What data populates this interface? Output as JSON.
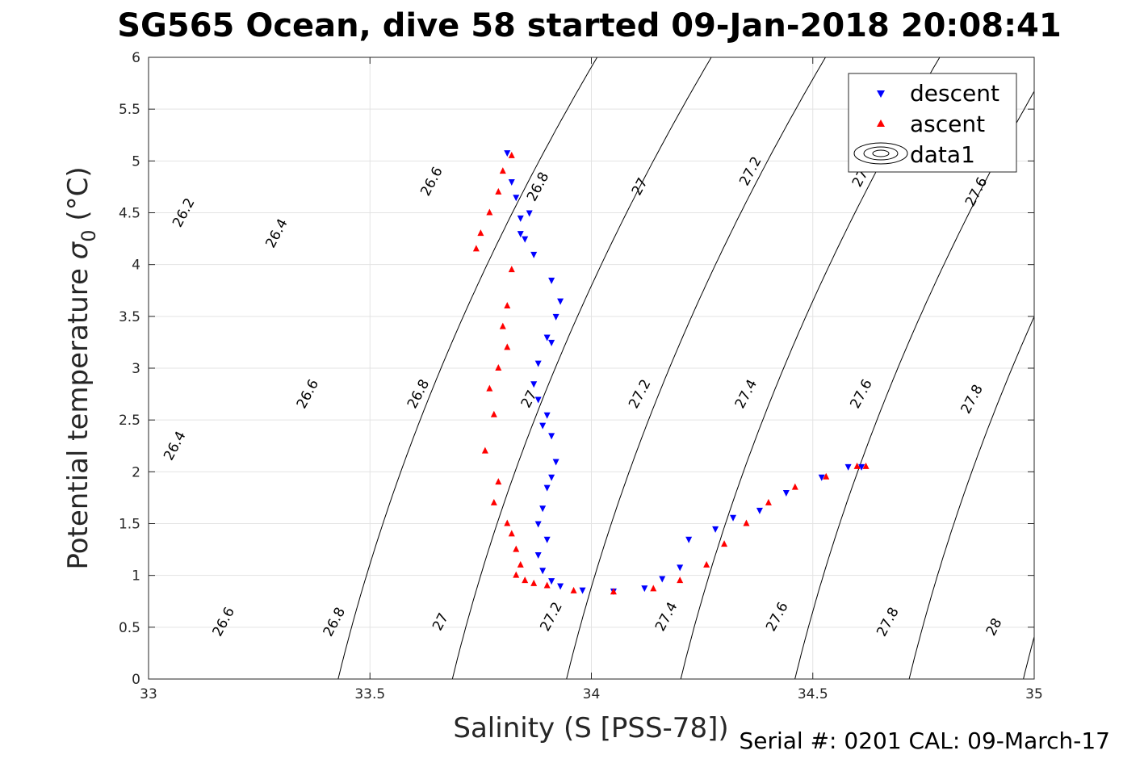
{
  "chart_data": {
    "type": "scatter",
    "title": "SG565 Ocean, dive 58 started 09-Jan-2018 20:08:41",
    "xlabel": "Salinity (S [PSS-78])",
    "ylabel_main": "Potential temperature ",
    "ylabel_sigma": "σ",
    "ylabel_sub": "0",
    "ylabel_unit": " (°C)",
    "xlim": [
      33,
      35
    ],
    "ylim": [
      0,
      6
    ],
    "xticks": [
      33,
      33.5,
      34,
      34.5,
      35
    ],
    "xtick_labels": [
      "33",
      "33.5",
      "34",
      "34.5",
      "35"
    ],
    "yticks": [
      0,
      0.5,
      1,
      1.5,
      2,
      2.5,
      3,
      3.5,
      4,
      4.5,
      5,
      5.5,
      6
    ],
    "ytick_labels": [
      "0",
      "0.5",
      "1",
      "1.5",
      "2",
      "2.5",
      "3",
      "3.5",
      "4",
      "4.5",
      "5",
      "5.5",
      "6"
    ],
    "grid": true,
    "legend_position": "top-right",
    "legend": [
      "descent",
      "ascent",
      "data1"
    ],
    "contours": {
      "levels": [
        26.2,
        26.4,
        26.6,
        26.8,
        27,
        27.2,
        27.4,
        27.6,
        27.8,
        28
      ],
      "labels": [
        {
          "text": "26.2",
          "s": 33.08,
          "t": 4.5
        },
        {
          "text": "26.4",
          "s": 33.29,
          "t": 4.3
        },
        {
          "text": "26.6",
          "s": 33.64,
          "t": 4.8
        },
        {
          "text": "26.8",
          "s": 33.88,
          "t": 4.75
        },
        {
          "text": "27",
          "s": 34.11,
          "t": 4.75
        },
        {
          "text": "27.2",
          "s": 34.36,
          "t": 4.9
        },
        {
          "text": "27.",
          "s": 34.61,
          "t": 4.85
        },
        {
          "text": "27.6",
          "s": 34.87,
          "t": 4.7
        },
        {
          "text": "26.4",
          "s": 33.06,
          "t": 2.25
        },
        {
          "text": "26.6",
          "s": 33.36,
          "t": 2.75
        },
        {
          "text": "26.8",
          "s": 33.61,
          "t": 2.75
        },
        {
          "text": "27",
          "s": 33.86,
          "t": 2.7
        },
        {
          "text": "27.2",
          "s": 34.11,
          "t": 2.75
        },
        {
          "text": "27.4",
          "s": 34.35,
          "t": 2.75
        },
        {
          "text": "27.6",
          "s": 34.61,
          "t": 2.75
        },
        {
          "text": "27.8",
          "s": 34.86,
          "t": 2.7
        },
        {
          "text": "26.6",
          "s": 33.17,
          "t": 0.55
        },
        {
          "text": "26.8",
          "s": 33.42,
          "t": 0.55
        },
        {
          "text": "27",
          "s": 33.66,
          "t": 0.55
        },
        {
          "text": "27.2",
          "s": 33.91,
          "t": 0.6
        },
        {
          "text": "27.4",
          "s": 34.17,
          "t": 0.6
        },
        {
          "text": "27.6",
          "s": 34.42,
          "t": 0.6
        },
        {
          "text": "27.8",
          "s": 34.67,
          "t": 0.55
        },
        {
          "text": "28",
          "s": 34.91,
          "t": 0.5
        }
      ]
    },
    "series": [
      {
        "name": "descent",
        "marker": "triangle-down",
        "color": "#0000ff",
        "x": [
          33.81,
          33.82,
          33.83,
          33.84,
          33.86,
          33.84,
          33.85,
          33.87,
          33.91,
          33.93,
          33.92,
          33.9,
          33.91,
          33.88,
          33.87,
          33.88,
          33.9,
          33.89,
          33.91,
          33.92,
          33.91,
          33.9,
          33.89,
          33.88,
          33.9,
          33.88,
          33.89,
          33.91,
          33.93,
          33.98,
          34.05,
          34.12,
          34.16,
          34.2,
          34.22,
          34.28,
          34.32,
          34.38,
          34.44,
          34.52,
          34.58,
          34.61
        ],
        "y": [
          5.08,
          4.8,
          4.65,
          4.45,
          4.5,
          4.3,
          4.25,
          4.1,
          3.85,
          3.65,
          3.5,
          3.3,
          3.25,
          3.05,
          2.85,
          2.7,
          2.55,
          2.45,
          2.35,
          2.1,
          1.95,
          1.85,
          1.65,
          1.5,
          1.35,
          1.2,
          1.05,
          0.95,
          0.9,
          0.86,
          0.85,
          0.88,
          0.97,
          1.08,
          1.35,
          1.45,
          1.56,
          1.63,
          1.8,
          1.95,
          2.05,
          2.05
        ]
      },
      {
        "name": "ascent",
        "marker": "triangle-up",
        "color": "#ff0000",
        "x": [
          33.82,
          33.8,
          33.79,
          33.77,
          33.75,
          33.74,
          33.82,
          33.81,
          33.8,
          33.81,
          33.79,
          33.77,
          33.78,
          33.76,
          33.79,
          33.78,
          33.81,
          33.82,
          33.83,
          33.84,
          33.83,
          33.85,
          33.87,
          33.9,
          33.96,
          34.05,
          34.14,
          34.2,
          34.26,
          34.3,
          34.35,
          34.4,
          34.46,
          34.53,
          34.6,
          34.62
        ],
        "y": [
          5.05,
          4.9,
          4.7,
          4.5,
          4.3,
          4.15,
          3.95,
          3.6,
          3.4,
          3.2,
          3.0,
          2.8,
          2.55,
          2.2,
          1.9,
          1.7,
          1.5,
          1.4,
          1.25,
          1.1,
          1.0,
          0.95,
          0.92,
          0.9,
          0.85,
          0.84,
          0.87,
          0.95,
          1.1,
          1.3,
          1.5,
          1.7,
          1.85,
          1.95,
          2.05,
          2.05
        ]
      }
    ]
  },
  "footer": {
    "serial": "Serial #: 0201  CAL: 09-March-17"
  }
}
